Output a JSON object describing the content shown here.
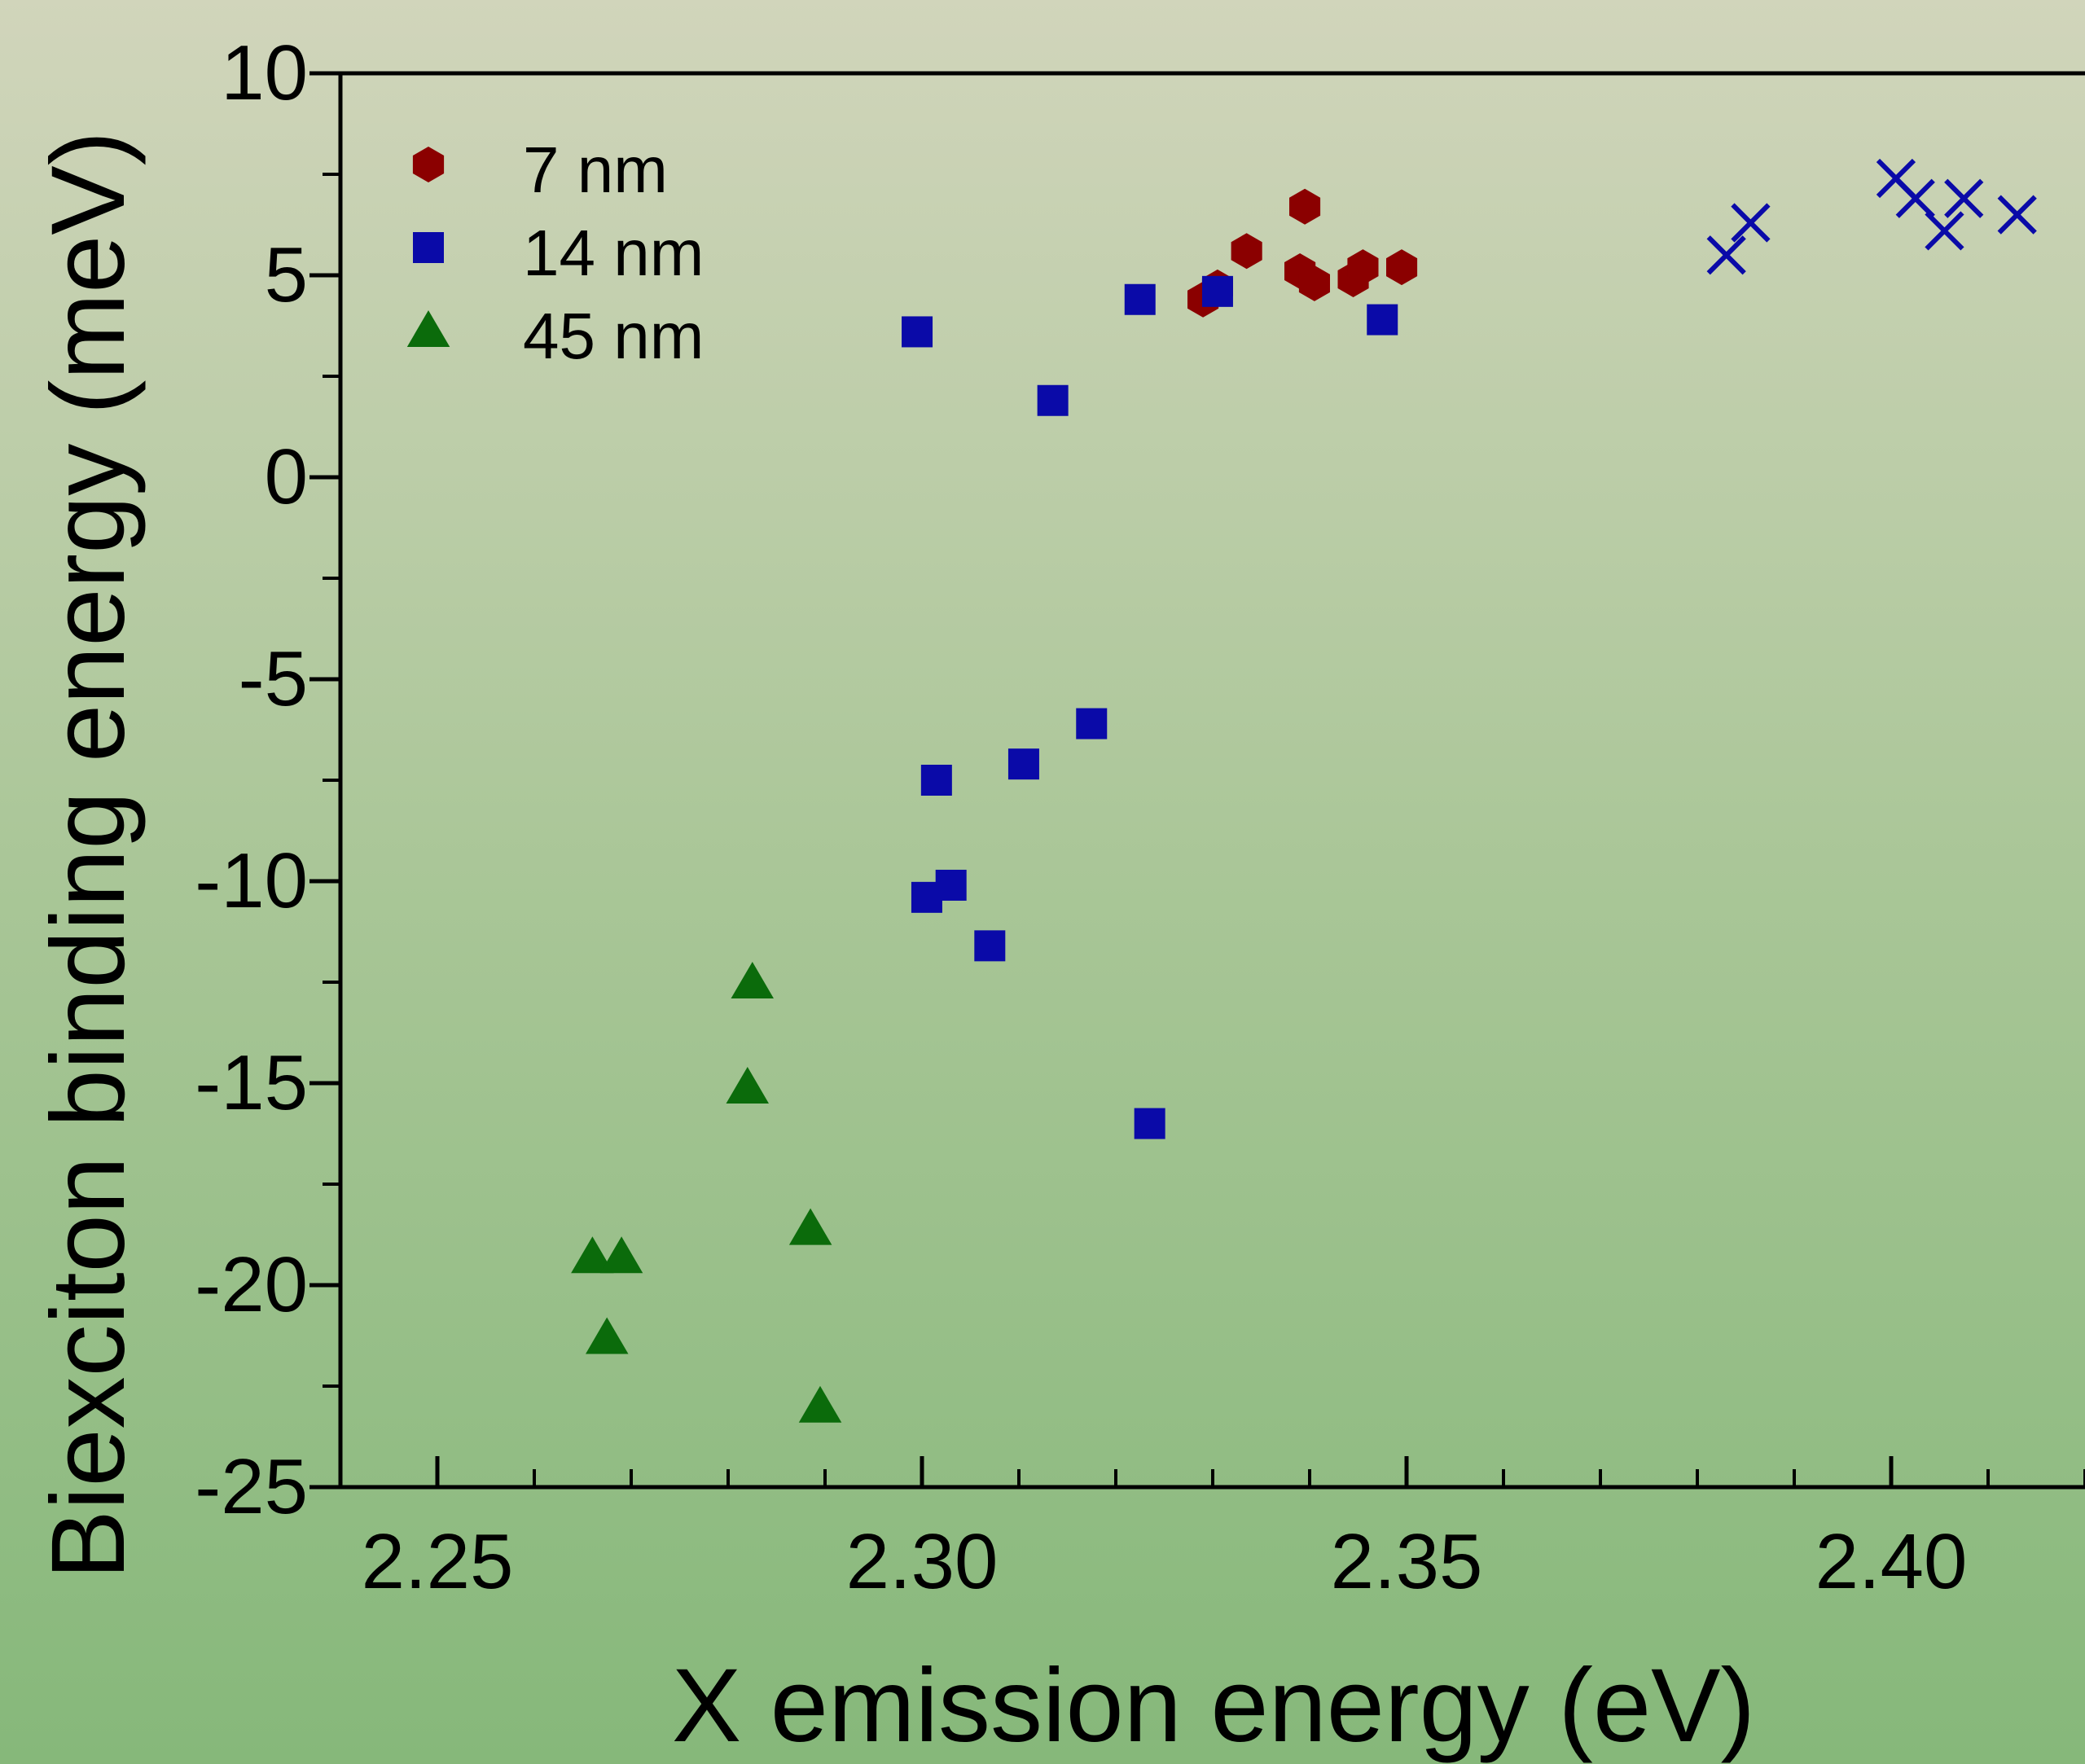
{
  "chart_data": {
    "type": "scatter",
    "title": "",
    "xlabel": "X emission energy (eV)",
    "ylabel": "Biexciton binding energy (meV)",
    "xlim": [
      2.24,
      2.42
    ],
    "ylim": [
      -25,
      10
    ],
    "x_ticks": [
      2.25,
      2.3,
      2.35,
      2.4
    ],
    "x_tick_labels": [
      "2.25",
      "2.30",
      "2.35",
      "2.40"
    ],
    "y_ticks": [
      10,
      5,
      0,
      -5,
      -10,
      -15,
      -20,
      -25
    ],
    "y_tick_labels": [
      "10",
      "5",
      "0",
      "-5",
      "-10",
      "-15",
      "-20",
      "-25"
    ],
    "grid": false,
    "legend_placement": "top-left",
    "series": [
      {
        "name": "7 nm",
        "marker": "hexagon",
        "color": "#8b0000",
        "points": [
          [
            2.329,
            4.4
          ],
          [
            2.3305,
            4.7
          ],
          [
            2.3335,
            5.6
          ],
          [
            2.3395,
            6.7
          ],
          [
            2.339,
            5.1
          ],
          [
            2.3405,
            4.8
          ],
          [
            2.3445,
            4.9
          ],
          [
            2.3455,
            5.2
          ],
          [
            2.3495,
            5.2
          ]
        ]
      },
      {
        "name": "14 nm",
        "marker": "square",
        "color": "#0a0aa8",
        "points": [
          [
            2.2995,
            3.6
          ],
          [
            2.3135,
            1.9
          ],
          [
            2.3225,
            4.4
          ],
          [
            2.3305,
            4.6
          ],
          [
            2.3475,
            3.9
          ],
          [
            2.3175,
            -6.1
          ],
          [
            2.3105,
            -7.1
          ],
          [
            2.3015,
            -7.5
          ],
          [
            2.303,
            -10.1
          ],
          [
            2.3005,
            -10.4
          ],
          [
            2.307,
            -11.6
          ],
          [
            2.3235,
            -16.0
          ]
        ]
      },
      {
        "name": "45 nm",
        "marker": "triangle",
        "color": "#0b6b0b",
        "points": [
          [
            2.2825,
            -12.5
          ],
          [
            2.282,
            -15.1
          ],
          [
            2.266,
            -19.3
          ],
          [
            2.269,
            -19.3
          ],
          [
            2.2675,
            -21.3
          ],
          [
            2.2885,
            -18.6
          ],
          [
            2.2895,
            -23.0
          ]
        ]
      },
      {
        "marker": "cross",
        "color": "#0a0aa8",
        "points": [
          [
            2.383,
            5.5
          ],
          [
            2.3855,
            6.3
          ],
          [
            2.4005,
            7.4
          ],
          [
            2.4025,
            6.9
          ],
          [
            2.4055,
            6.1
          ],
          [
            2.4075,
            6.9
          ],
          [
            2.413,
            6.5
          ]
        ]
      }
    ]
  }
}
